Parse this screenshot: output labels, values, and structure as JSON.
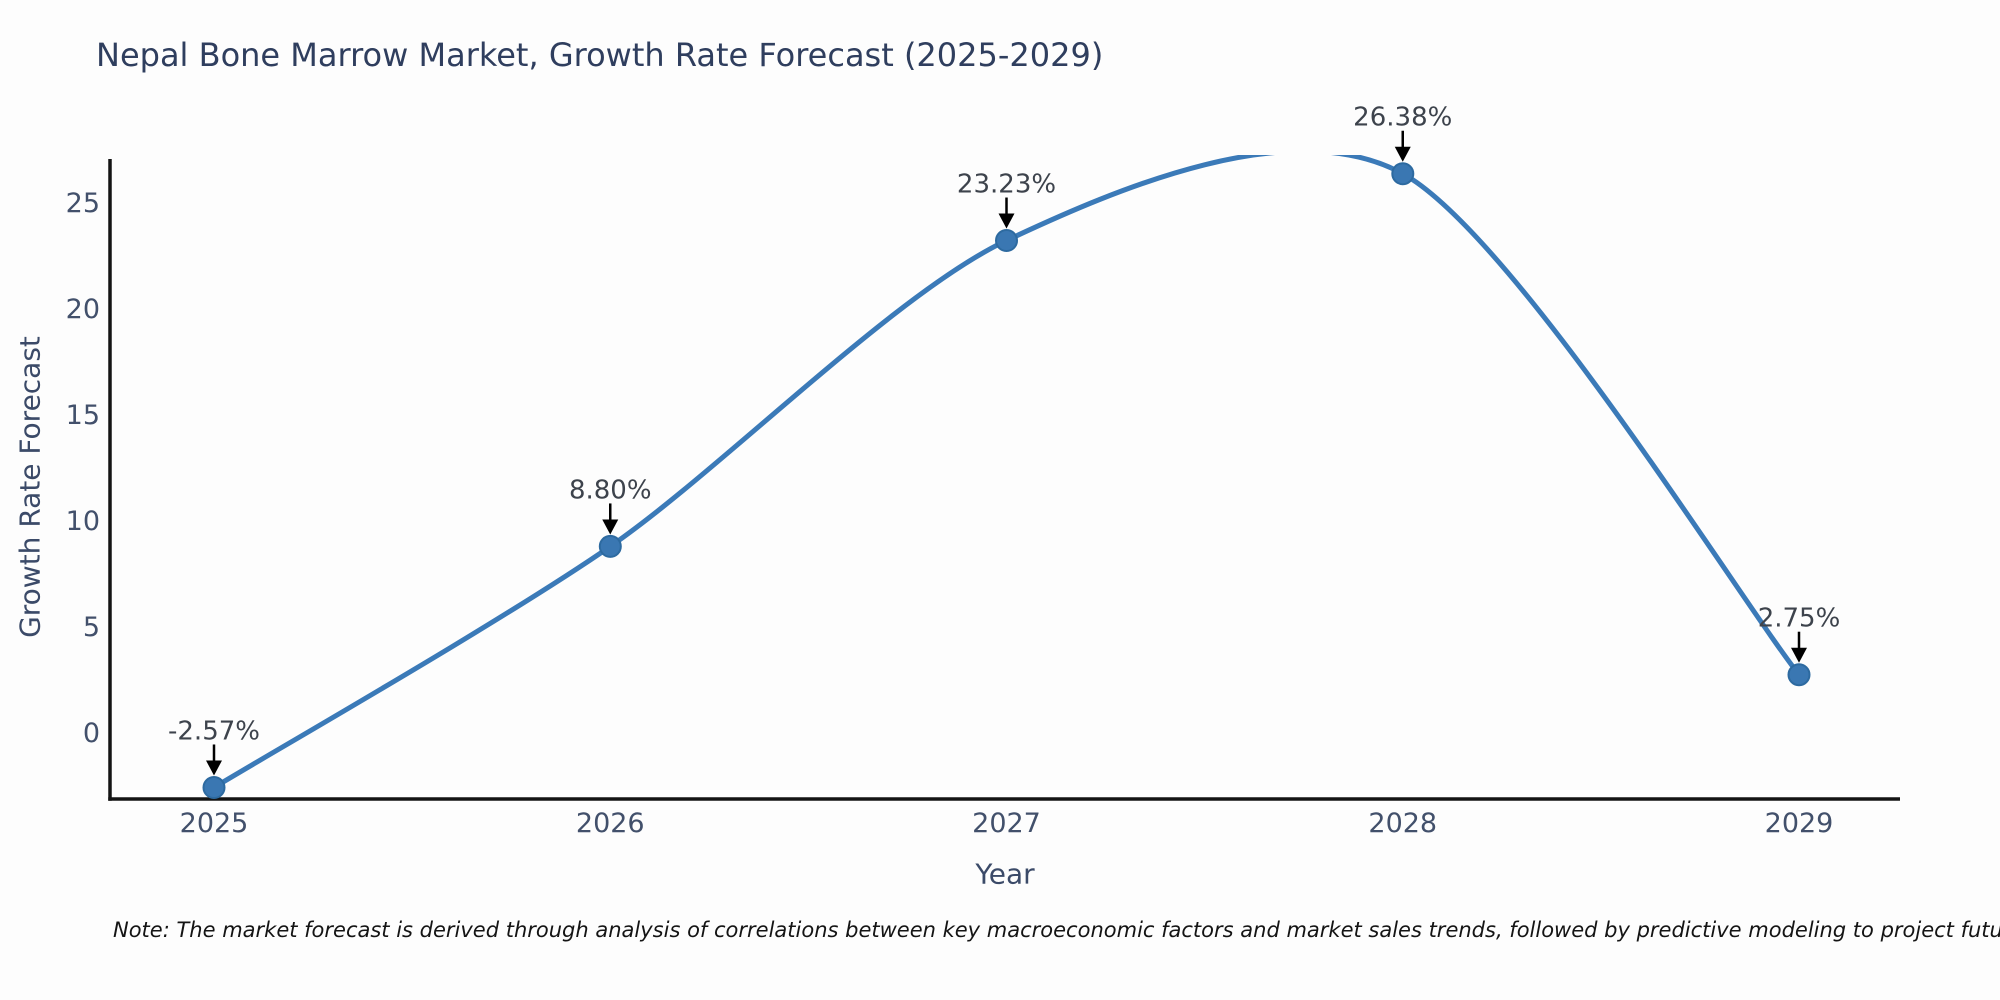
{
  "chart_data": {
    "type": "line",
    "title": "Nepal Bone Marrow Market, Growth Rate Forecast (2025-2029)",
    "xlabel": "Year",
    "ylabel": "Growth Rate Forecast",
    "x": [
      "2025",
      "2026",
      "2027",
      "2028",
      "2029"
    ],
    "values": [
      -2.57,
      8.8,
      23.23,
      26.38,
      2.75
    ],
    "point_labels": [
      "-2.57%",
      "8.80%",
      "23.23%",
      "26.38%",
      "2.75%"
    ],
    "yticks": [
      0,
      5,
      10,
      15,
      20,
      25
    ],
    "ylim": [
      -3.1,
      27.2
    ],
    "grid": false,
    "legend": false,
    "line_smoothing": "spline",
    "line_color": "#3b7ab8",
    "marker_color": "#3a77b2",
    "marker_edge_color": "#2d6aa0",
    "spine_color": "#141414",
    "annotation_color": "#000000",
    "note": "Note: The market forecast is derived through analysis of correlations between key macroeconomic factors and market sales trends, followed by predictive modeling to project future sales"
  }
}
